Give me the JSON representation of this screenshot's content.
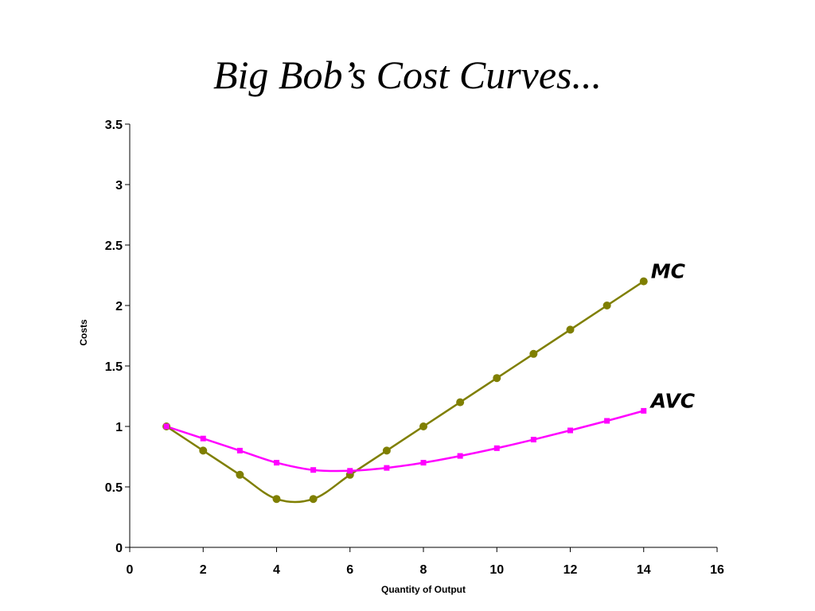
{
  "chart_data": {
    "type": "line",
    "title": "Big Bob’s Cost Curves...",
    "xlabel": "Quantity of Output",
    "ylabel": "Costs",
    "xlim": [
      0,
      16
    ],
    "ylim": [
      0,
      3.5
    ],
    "xticks": [
      0,
      2,
      4,
      6,
      8,
      10,
      12,
      14,
      16
    ],
    "yticks": [
      0,
      0.5,
      1,
      1.5,
      2,
      2.5,
      3,
      3.5
    ],
    "ytick_labels": [
      "0",
      "0.5",
      "1",
      "1.5",
      "2",
      "2.5",
      "3",
      "3.5"
    ],
    "grid": false,
    "legend": "none",
    "series": [
      {
        "name": "MC",
        "color": "#7f7f00",
        "marker": "circle",
        "smooth": true,
        "x": [
          1,
          2,
          3,
          4,
          5,
          6,
          7,
          8,
          9,
          10,
          11,
          12,
          13,
          14
        ],
        "y": [
          1.0,
          0.8,
          0.6,
          0.4,
          0.4,
          0.6,
          0.8,
          1.0,
          1.2,
          1.4,
          1.6,
          1.8,
          2.0,
          2.2
        ]
      },
      {
        "name": "AVC",
        "color": "#ff00ff",
        "marker": "square",
        "smooth": true,
        "x": [
          1,
          2,
          3,
          4,
          5,
          6,
          7,
          8,
          9,
          10,
          11,
          12,
          13,
          14
        ],
        "y": [
          1.0,
          0.9,
          0.8,
          0.7,
          0.64,
          0.633,
          0.657,
          0.7,
          0.756,
          0.82,
          0.891,
          0.967,
          1.046,
          1.129
        ]
      }
    ]
  }
}
